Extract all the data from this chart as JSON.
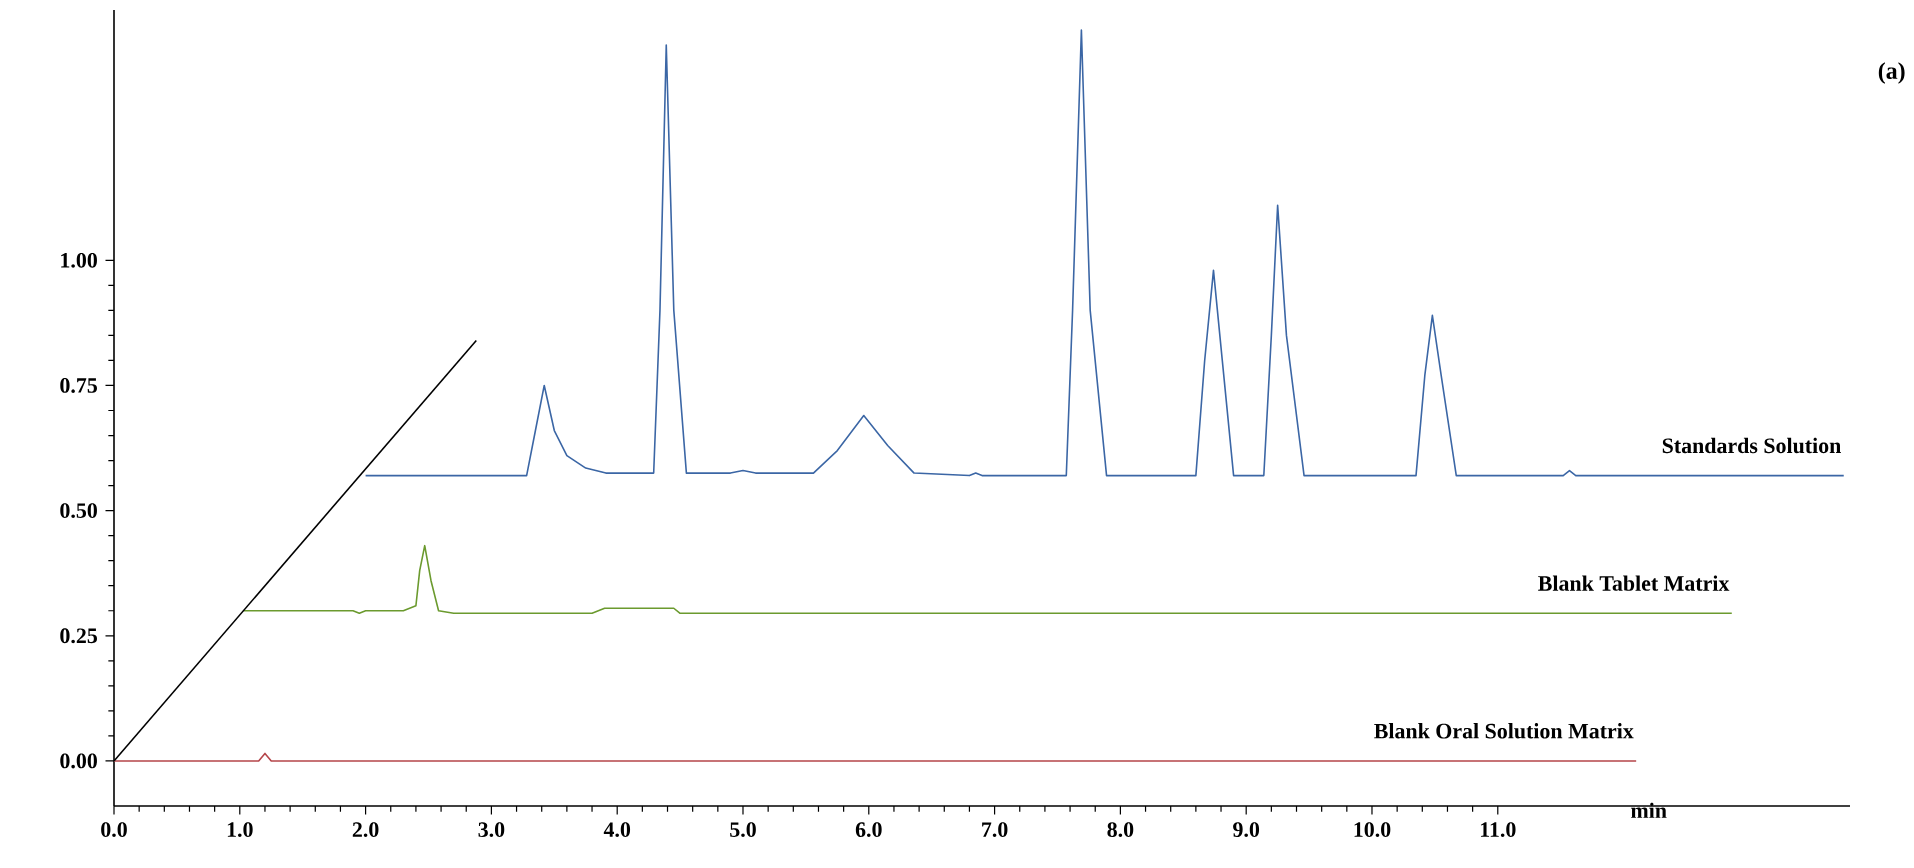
{
  "chart_data": {
    "type": "line",
    "xlabel": "min",
    "annotations": [
      "(a)"
    ],
    "xlim": [
      0,
      13.8
    ],
    "ylim": [
      -0.09,
      1.5
    ],
    "xticks": [
      {
        "value": 0,
        "label": "0.0"
      },
      {
        "value": 1,
        "label": "1.0"
      },
      {
        "value": 2,
        "label": "2.0"
      },
      {
        "value": 3,
        "label": "3.0"
      },
      {
        "value": 4,
        "label": "4.0"
      },
      {
        "value": 5,
        "label": "5.0"
      },
      {
        "value": 6,
        "label": "6.0"
      },
      {
        "value": 7,
        "label": "7.0"
      },
      {
        "value": 8,
        "label": "8.0"
      },
      {
        "value": 9,
        "label": "9.0"
      },
      {
        "value": 10,
        "label": "10.0"
      },
      {
        "value": 11,
        "label": "11.0"
      }
    ],
    "yticks": [
      {
        "value": 0,
        "label": "0.00"
      },
      {
        "value": 0.25,
        "label": "0.25"
      },
      {
        "value": 0.5,
        "label": "0.50"
      },
      {
        "value": 0.75,
        "label": "0.75"
      },
      {
        "value": 1,
        "label": "1.00"
      }
    ],
    "series": [
      {
        "name": "Standards Solution",
        "color": "#3b66a5",
        "x": [
          2.0,
          3.28,
          3.35,
          3.42,
          3.5,
          3.6,
          3.75,
          3.91,
          4.29,
          4.34,
          4.39,
          4.45,
          4.55,
          4.9,
          5.0,
          5.1,
          5.56,
          5.75,
          5.96,
          6.15,
          6.36,
          6.8,
          6.85,
          6.9,
          7.57,
          7.62,
          7.69,
          7.76,
          7.89,
          8.2,
          8.6,
          8.67,
          8.74,
          8.81,
          8.9,
          9.14,
          9.2,
          9.25,
          9.32,
          9.46,
          10.35,
          10.42,
          10.48,
          10.55,
          10.67,
          11.52,
          11.57,
          11.62,
          13.75
        ],
        "values": [
          0.57,
          0.57,
          0.66,
          0.75,
          0.66,
          0.61,
          0.585,
          0.575,
          0.575,
          0.9,
          1.43,
          0.9,
          0.575,
          0.575,
          0.58,
          0.575,
          0.575,
          0.62,
          0.69,
          0.63,
          0.575,
          0.57,
          0.575,
          0.57,
          0.57,
          0.9,
          1.46,
          0.9,
          0.57,
          0.57,
          0.57,
          0.8,
          0.98,
          0.8,
          0.57,
          0.57,
          0.85,
          1.11,
          0.85,
          0.57,
          0.57,
          0.77,
          0.89,
          0.77,
          0.57,
          0.57,
          0.58,
          0.57,
          0.57
        ]
      },
      {
        "name": "Blank Tablet Matrix",
        "color": "#6b9a2e",
        "x": [
          1.03,
          1.9,
          1.95,
          2.0,
          2.3,
          2.4,
          2.43,
          2.47,
          2.52,
          2.58,
          2.7,
          3.8,
          3.9,
          4.45,
          4.5,
          12.86
        ],
        "values": [
          0.3,
          0.3,
          0.295,
          0.3,
          0.3,
          0.31,
          0.38,
          0.43,
          0.36,
          0.3,
          0.295,
          0.295,
          0.305,
          0.305,
          0.295,
          0.295
        ]
      },
      {
        "name": "Blank Oral Solution Matrix",
        "color": "#b5454a",
        "x": [
          0,
          1.15,
          1.2,
          1.25,
          12.1
        ],
        "values": [
          0,
          0,
          0.015,
          0,
          0
        ]
      },
      {
        "color": "#000000",
        "x": [
          0,
          2.88
        ],
        "values": [
          0,
          0.84
        ]
      }
    ]
  }
}
